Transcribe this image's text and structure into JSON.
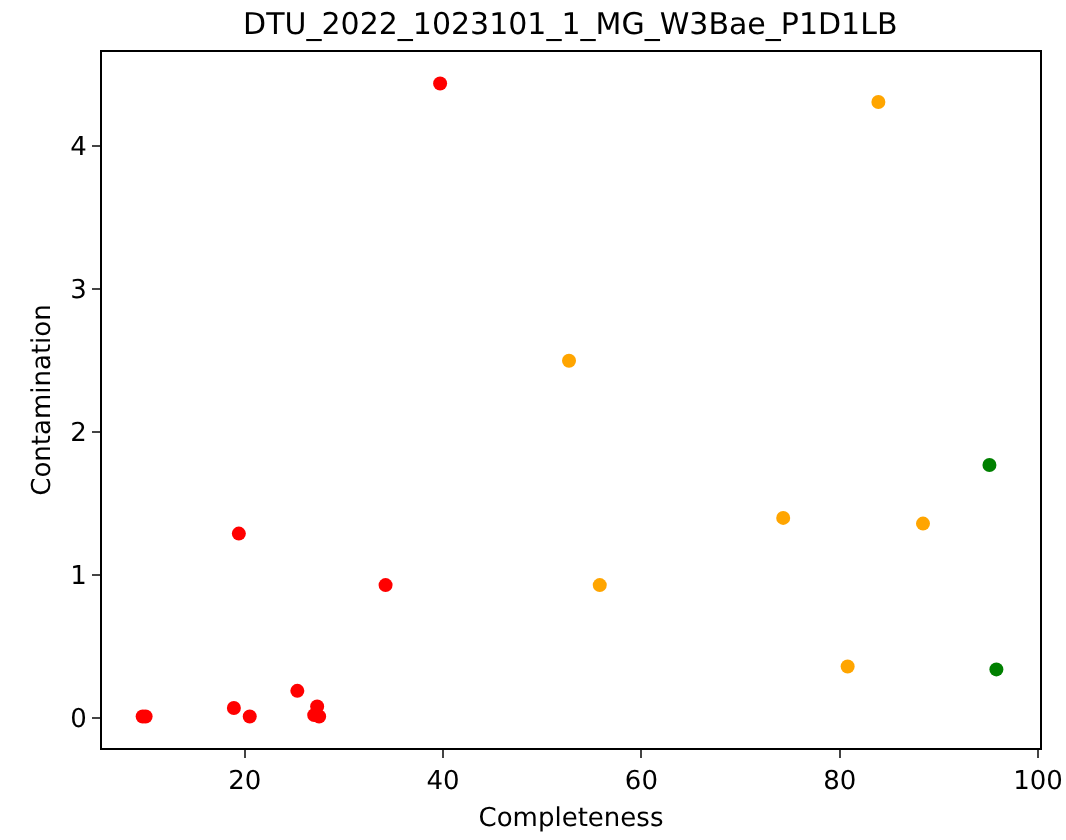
{
  "chart_data": {
    "type": "scatter",
    "title": "DTU_2022_1023101_1_MG_W3Bae_P1D1LB",
    "xlabel": "Completeness",
    "ylabel": "Contamination",
    "x": [
      39.7,
      19.4,
      34.2,
      9.7,
      10.0,
      18.9,
      20.5,
      25.3,
      27.3,
      27.0,
      27.5,
      83.9,
      52.7,
      55.8,
      74.3,
      88.4,
      80.8,
      95.1,
      95.8
    ],
    "values": [
      4.44,
      1.29,
      0.93,
      0.01,
      0.01,
      0.07,
      0.01,
      0.19,
      0.08,
      0.02,
      0.01,
      4.31,
      2.5,
      0.93,
      1.4,
      1.36,
      0.36,
      1.77,
      0.34
    ],
    "colors": [
      "#ff0000",
      "#ff0000",
      "#ff0000",
      "#ff0000",
      "#ff0000",
      "#ff0000",
      "#ff0000",
      "#ff0000",
      "#ff0000",
      "#ff0000",
      "#ff0000",
      "#ffa500",
      "#ffa500",
      "#ffa500",
      "#ffa500",
      "#ffa500",
      "#ffa500",
      "#008000",
      "#008000"
    ],
    "xlim": [
      5.6,
      100.2
    ],
    "xticks": [
      20,
      40,
      60,
      80,
      100
    ],
    "ylim": [
      -0.21,
      4.66
    ],
    "yticks": [
      0,
      1,
      2,
      3,
      4
    ],
    "marker": "circle",
    "grid": false
  }
}
